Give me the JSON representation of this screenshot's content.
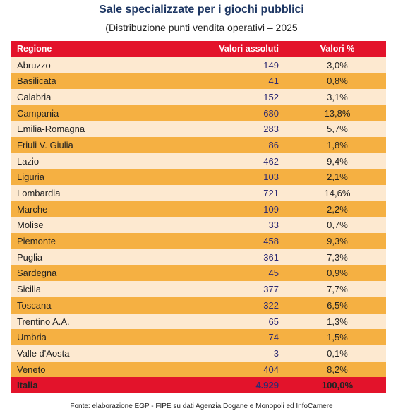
{
  "title": "Sale specializzate per i giochi pubblici",
  "subtitle": "(Distribuzione punti vendita operativi – 2025",
  "table": {
    "headers": [
      "Regione",
      "Valori assoluti",
      "Valori %"
    ],
    "rows": [
      [
        "Abruzzo",
        "149",
        "3,0%"
      ],
      [
        "Basilicata",
        "41",
        "0,8%"
      ],
      [
        "Calabria",
        "152",
        "3,1%"
      ],
      [
        "Campania",
        "680",
        "13,8%"
      ],
      [
        "Emilia-Romagna",
        "283",
        "5,7%"
      ],
      [
        "Friuli V. Giulia",
        "86",
        "1,8%"
      ],
      [
        "Lazio",
        "462",
        "9,4%"
      ],
      [
        "Liguria",
        "103",
        "2,1%"
      ],
      [
        "Lombardia",
        "721",
        "14,6%"
      ],
      [
        "Marche",
        "109",
        "2,2%"
      ],
      [
        "Molise",
        "33",
        "0,7%"
      ],
      [
        "Piemonte",
        "458",
        "9,3%"
      ],
      [
        "Puglia",
        "361",
        "7,3%"
      ],
      [
        "Sardegna",
        "45",
        "0,9%"
      ],
      [
        "Sicilia",
        "377",
        "7,7%"
      ],
      [
        "Toscana",
        "322",
        "6,5%"
      ],
      [
        "Trentino A.A.",
        "65",
        "1,3%"
      ],
      [
        "Umbria",
        "74",
        "1,5%"
      ],
      [
        "Valle d'Aosta",
        "3",
        "0,1%"
      ],
      [
        "Veneto",
        "404",
        "8,2%"
      ]
    ],
    "total": [
      "Italia",
      "4.929",
      "100,0%"
    ]
  },
  "colors": {
    "header": "#e3132b",
    "row_light": "#fde9d0",
    "row_dark": "#f5b042",
    "title": "#1f3864",
    "number": "#2d2a72"
  },
  "source": "Fonte: elaborazione EGP - FIPE su dati Agenzia Dogane e Monopoli ed InfoCamere"
}
